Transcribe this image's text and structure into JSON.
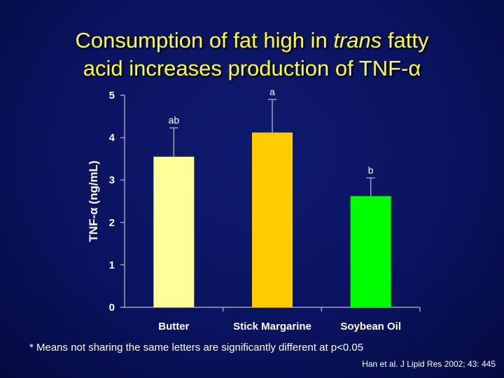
{
  "slide": {
    "title_line1_prefix": "Consumption of fat high in ",
    "title_line1_em": "trans",
    "title_line1_suffix": " fatty",
    "title_line2": "acid increases production of TNF-α",
    "footnote": "* Means not sharing the same letters are significantly different at p<0.05",
    "citation": "Han et al. J Lipid Res 2002; 43: 445"
  },
  "chart_data": {
    "type": "bar",
    "categories": [
      "Butter",
      "Stick Margarine",
      "Soybean Oil"
    ],
    "values": [
      3.55,
      4.12,
      2.62
    ],
    "errors": [
      0.68,
      0.78,
      0.43
    ],
    "significance_letters": [
      "ab",
      "a",
      "b"
    ],
    "bar_colors": [
      "#ffff99",
      "#ffcc00",
      "#00ff00"
    ],
    "ylabel": "TNF-α (ng/mL)",
    "xlabel": "",
    "ylim": [
      0,
      5
    ],
    "yticks": [
      0,
      1,
      2,
      3,
      4,
      5
    ],
    "grid": false,
    "colors": {
      "title": "#ffff33",
      "axis": "#a0a0b8",
      "text": "#ffffff"
    }
  }
}
